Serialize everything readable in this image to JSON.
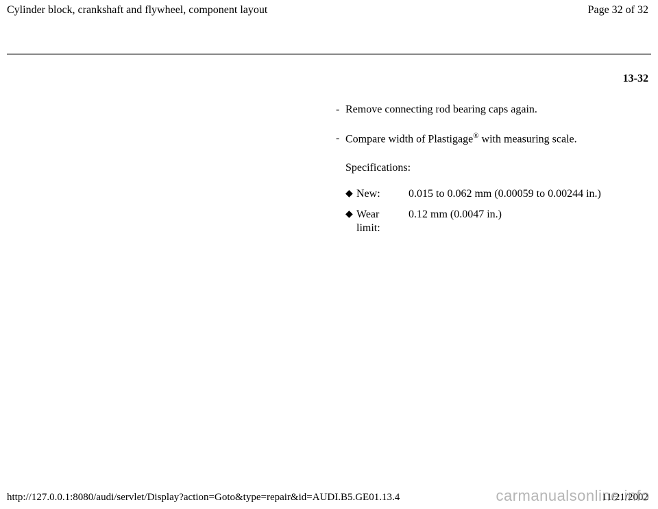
{
  "header": {
    "title": "Cylinder block, crankshaft and flywheel, component layout",
    "page_label": "Page 32 of 32"
  },
  "section_number": "13-32",
  "steps": [
    {
      "text": "Remove connecting rod bearing caps again."
    },
    {
      "text_pre": "Compare width of Plastigage",
      "registered": "®",
      "text_post": " with measuring scale."
    }
  ],
  "specifications": {
    "heading": "Specifications:",
    "rows": [
      {
        "label": "New:",
        "value": "0.015 to 0.062 mm (0.00059 to 0.00244 in.)"
      },
      {
        "label": "Wear limit:",
        "value": "0.12 mm (0.0047 in.)"
      }
    ]
  },
  "footer": {
    "url": "http://127.0.0.1:8080/audi/servlet/Display?action=Goto&type=repair&id=AUDI.B5.GE01.13.4",
    "date": "11/21/2002"
  },
  "watermark": "carmanualsonline.info",
  "bullets": {
    "dash": "-",
    "diamond": "◆"
  }
}
